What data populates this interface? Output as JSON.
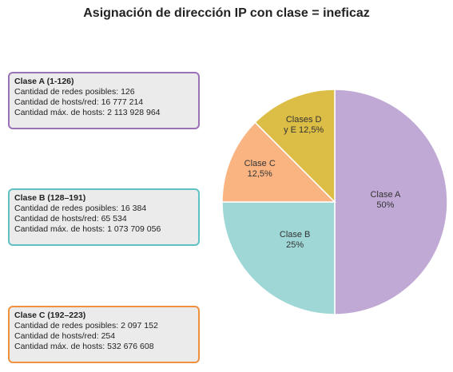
{
  "title": "Asignación de dirección IP con clase = ineficaz",
  "boxes": [
    {
      "header": "Clase A (1-126)",
      "lines": [
        "Cantidad de redes posibles: 126",
        "Cantidad de hosts/red: 16 777 214",
        "Cantidad máx. de hosts: 2 113 928 964"
      ],
      "color": "#9b72b8"
    },
    {
      "header": "Clase B (128–191)",
      "lines": [
        "Cantidad de redes posibles: 16 384",
        "Cantidad de hosts/red: 65 534",
        "Cantidad máx. de hosts: 1 073 709 056"
      ],
      "color": "#5fc1c1"
    },
    {
      "header": "Clase C (192–223)",
      "lines": [
        "Cantidad de redes posibles: 2 097 152",
        "Cantidad de hosts/red: 254",
        "Cantidad máx. de hosts: 532 676 608"
      ],
      "color": "#f0913f"
    }
  ],
  "chart_data": {
    "type": "pie",
    "slices": [
      {
        "label": [
          "Clase A",
          "50%"
        ],
        "value": 50,
        "color": "#c0a9d4"
      },
      {
        "label": [
          "Clase B",
          "25%"
        ],
        "value": 25,
        "color": "#9ed7d5"
      },
      {
        "label": [
          "Clase C",
          "12,5%"
        ],
        "value": 12.5,
        "color": "#f9b482"
      },
      {
        "label": [
          "Clases D",
          "y E 12,5%"
        ],
        "value": 12.5,
        "color": "#dcbd45"
      }
    ]
  }
}
